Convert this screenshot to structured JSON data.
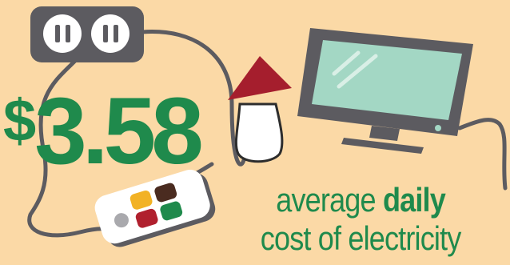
{
  "headline": {
    "currency_symbol": "$",
    "amount": "3.58"
  },
  "caption": {
    "line1_prefix": "average",
    "line1_emphasis": "daily",
    "line2": "cost of electricity"
  },
  "icons": [
    "power-outlet-icon",
    "table-lamp-icon",
    "television-icon",
    "remote-control-icon",
    "power-cord-icon"
  ],
  "colors": {
    "background": "#fbd9a6",
    "accent_green": "#1f8a4c",
    "device_gray": "#5c5b60",
    "lamp_red": "#a51e2d",
    "screen_teal": "#a3d7c4",
    "button_yellow": "#f2b225",
    "button_brown": "#4a2b20",
    "button_red": "#b0202e",
    "button_green": "#1f8a4c"
  }
}
